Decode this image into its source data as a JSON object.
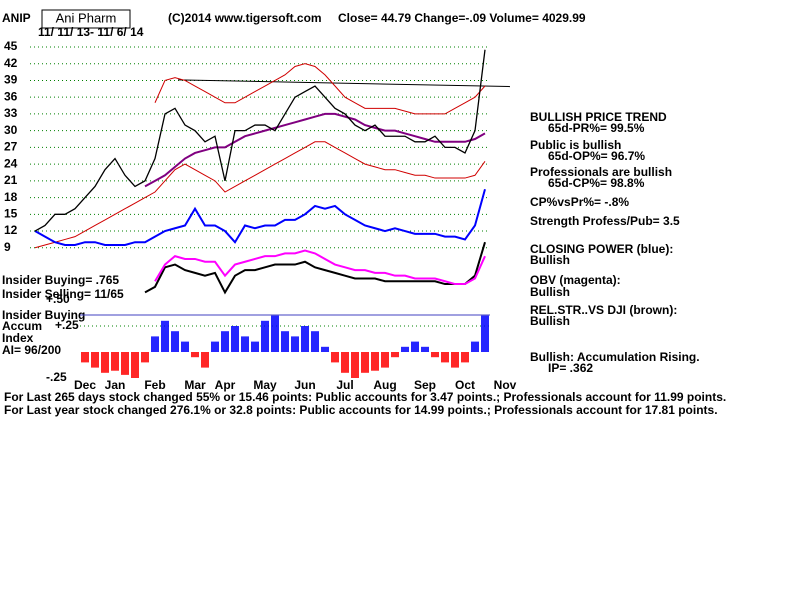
{
  "header": {
    "symbol": "ANIP",
    "name": "Ani Pharm",
    "copyright": "(C)2014 www.tigersoft.com",
    "quote": "Close=  44.79  Change=-.09 Volume= 4029.99",
    "dates": "11/ 11/ 13- 11/ 6/ 14"
  },
  "panel": [
    "BULLISH PRICE TREND",
    "65d-PR%= 99.5%",
    "Public is bullish",
    "65d-OP%= 96.7%",
    "Professionals are bullish",
    "65d-CP%= 98.8%",
    "CP%vsPr%= -.8%",
    "Strength Profess/Pub= 3.5",
    "CLOSING POWER (blue):",
    "Bullish",
    "OBV (magenta):",
    "Bullish",
    "REL.STR..VS DJI (brown):",
    "Bullish",
    "Bullish: Accumulation Rising.",
    "IP=  .362"
  ],
  "insider": [
    "Insider Buying= .765",
    "Insider Selling= 11/65",
    "Insider Buying",
    "Accum",
    "Index",
    "AI= 96/200"
  ],
  "footer": [
    "For Last 265 days stock changed  55% or  15.46 points:  Public accounts for  3.47 points.;  Professionals account for  11.99 points.",
    "For Last year stock changed  276.1% or  32.8 points:  Public accounts for  14.99 points.;  Professionals account for  17.81 points."
  ],
  "chart_data": [
    {
      "type": "line",
      "ylim": [
        0,
        46.5
      ],
      "yticks": [
        9,
        12,
        15,
        18,
        21,
        24,
        27,
        30,
        33,
        36,
        39,
        42,
        45
      ],
      "grid": true,
      "trendline": [
        39.1,
        37.9
      ],
      "series": [
        {
          "name": "lower band",
          "color": "#d00000",
          "values": [
            9,
            9.5,
            10,
            10.5,
            11,
            12,
            13,
            14,
            15,
            16,
            17,
            18,
            19,
            21,
            23,
            24,
            23,
            22,
            21,
            19,
            20,
            21,
            22,
            23,
            24,
            25,
            26,
            27,
            28,
            28,
            27,
            26,
            25,
            24,
            23.5,
            23,
            23,
            22.5,
            22,
            22,
            21.5,
            21.5,
            21.5,
            21.5,
            22,
            24.5,
            null,
            null
          ]
        },
        {
          "name": "upper band",
          "color": "#d00000",
          "values": [
            null,
            null,
            null,
            null,
            null,
            null,
            null,
            null,
            null,
            null,
            null,
            null,
            35,
            39,
            39.5,
            39,
            38,
            37,
            36,
            35,
            35,
            36,
            37,
            38,
            39,
            40,
            41.5,
            42,
            41.5,
            40,
            38,
            36,
            35,
            34,
            34,
            34,
            34,
            33.5,
            33,
            33,
            33,
            33,
            34,
            35,
            36,
            38,
            null,
            null
          ]
        },
        {
          "name": "REL.STR..VS DJI",
          "color": "#000000",
          "values": [
            null,
            null,
            null,
            null,
            null,
            null,
            null,
            null,
            null,
            null,
            null,
            1,
            2,
            5.5,
            6,
            5,
            4.5,
            4,
            4.5,
            1,
            4,
            5,
            5,
            5.5,
            6,
            6,
            6,
            6.5,
            5.5,
            5,
            4.5,
            4,
            3.5,
            3.5,
            3.5,
            3,
            3,
            3,
            3,
            3,
            3,
            2.5,
            2.5,
            2.5,
            4,
            10,
            null,
            null
          ]
        },
        {
          "name": "OBV",
          "color": "#ff00ff",
          "values": [
            null,
            null,
            null,
            null,
            null,
            null,
            null,
            null,
            null,
            null,
            null,
            null,
            3,
            6,
            7.5,
            7,
            7,
            6.5,
            6.5,
            4,
            6,
            6.5,
            7,
            7.5,
            7.5,
            8,
            8,
            8.5,
            8,
            7,
            6,
            5.5,
            5,
            5,
            4.5,
            4.5,
            4,
            4,
            3.5,
            3.5,
            3.5,
            3,
            2.5,
            2.5,
            3.5,
            7.5,
            null,
            null
          ]
        },
        {
          "name": "CLOSING POWER",
          "color": "#0000ff",
          "values": [
            12,
            11,
            10,
            9.5,
            9.5,
            10,
            10,
            9.5,
            9.5,
            9.5,
            10,
            10,
            11,
            12,
            12.5,
            13,
            16,
            13,
            13,
            12,
            10,
            13,
            12.5,
            13,
            13,
            14,
            14,
            15,
            16.5,
            16,
            16.5,
            15,
            14,
            13,
            12.5,
            12,
            12.5,
            12,
            11.5,
            11.5,
            11.5,
            11,
            11,
            10.5,
            13,
            19.5,
            null,
            null
          ]
        },
        {
          "name": "moving average",
          "color": "#800080",
          "values": [
            null,
            null,
            null,
            null,
            null,
            null,
            null,
            null,
            null,
            null,
            null,
            20,
            21,
            22,
            23.5,
            25,
            26,
            26.5,
            27,
            27,
            28,
            29,
            29.5,
            30,
            30.5,
            31,
            31.5,
            32,
            32.5,
            33,
            33,
            32.5,
            32,
            31,
            30.5,
            30,
            30,
            29.5,
            29,
            28.5,
            28,
            28,
            28,
            28,
            28.5,
            29.5,
            null,
            null
          ]
        },
        {
          "name": "price",
          "color": "#000000",
          "values": [
            12,
            13,
            15,
            15,
            16,
            18,
            20,
            23,
            25,
            22,
            20,
            21,
            25,
            33,
            34,
            31,
            30,
            28,
            29,
            21,
            30,
            30,
            31,
            31,
            30,
            33,
            36,
            37,
            38,
            36,
            34,
            33,
            31,
            30,
            31,
            29,
            29,
            29,
            28,
            28,
            29,
            27,
            27,
            26,
            30,
            44.5,
            null,
            null
          ]
        }
      ]
    },
    {
      "type": "bar",
      "ylim": [
        -0.3,
        0.55
      ],
      "yticks": [
        {
          "value": 0.5,
          "label": "+.50"
        },
        {
          "value": 0.25,
          "label": "+.25"
        },
        {
          "value": -0.25,
          "label": "-.25"
        }
      ],
      "positive_color": "#0000ff",
      "negative_color": "#ff0000",
      "categories": [
        null,
        null,
        null,
        null,
        null,
        "Dec",
        null,
        null,
        "Jan",
        null,
        null,
        null,
        "Feb",
        null,
        null,
        null,
        "Mar",
        null,
        null,
        "Apr",
        null,
        null,
        null,
        "May",
        null,
        null,
        null,
        "Jun",
        null,
        null,
        null,
        "Jul",
        null,
        null,
        null,
        "Aug",
        null,
        null,
        null,
        "Sep",
        null,
        null,
        null,
        "Oct",
        null,
        null,
        null,
        "Nov"
      ],
      "values": [
        null,
        null,
        null,
        null,
        null,
        -0.1,
        -0.15,
        -0.2,
        -0.18,
        -0.22,
        -0.25,
        -0.1,
        0.15,
        0.3,
        0.2,
        0.1,
        -0.05,
        -0.15,
        0.1,
        0.2,
        0.25,
        0.15,
        0.1,
        0.3,
        0.35,
        0.2,
        0.15,
        0.25,
        0.2,
        0.05,
        -0.1,
        -0.2,
        -0.25,
        -0.2,
        -0.18,
        -0.15,
        -0.05,
        0.05,
        0.1,
        0.05,
        -0.05,
        -0.1,
        -0.15,
        -0.1,
        0.1,
        0.35,
        null,
        null
      ]
    }
  ]
}
